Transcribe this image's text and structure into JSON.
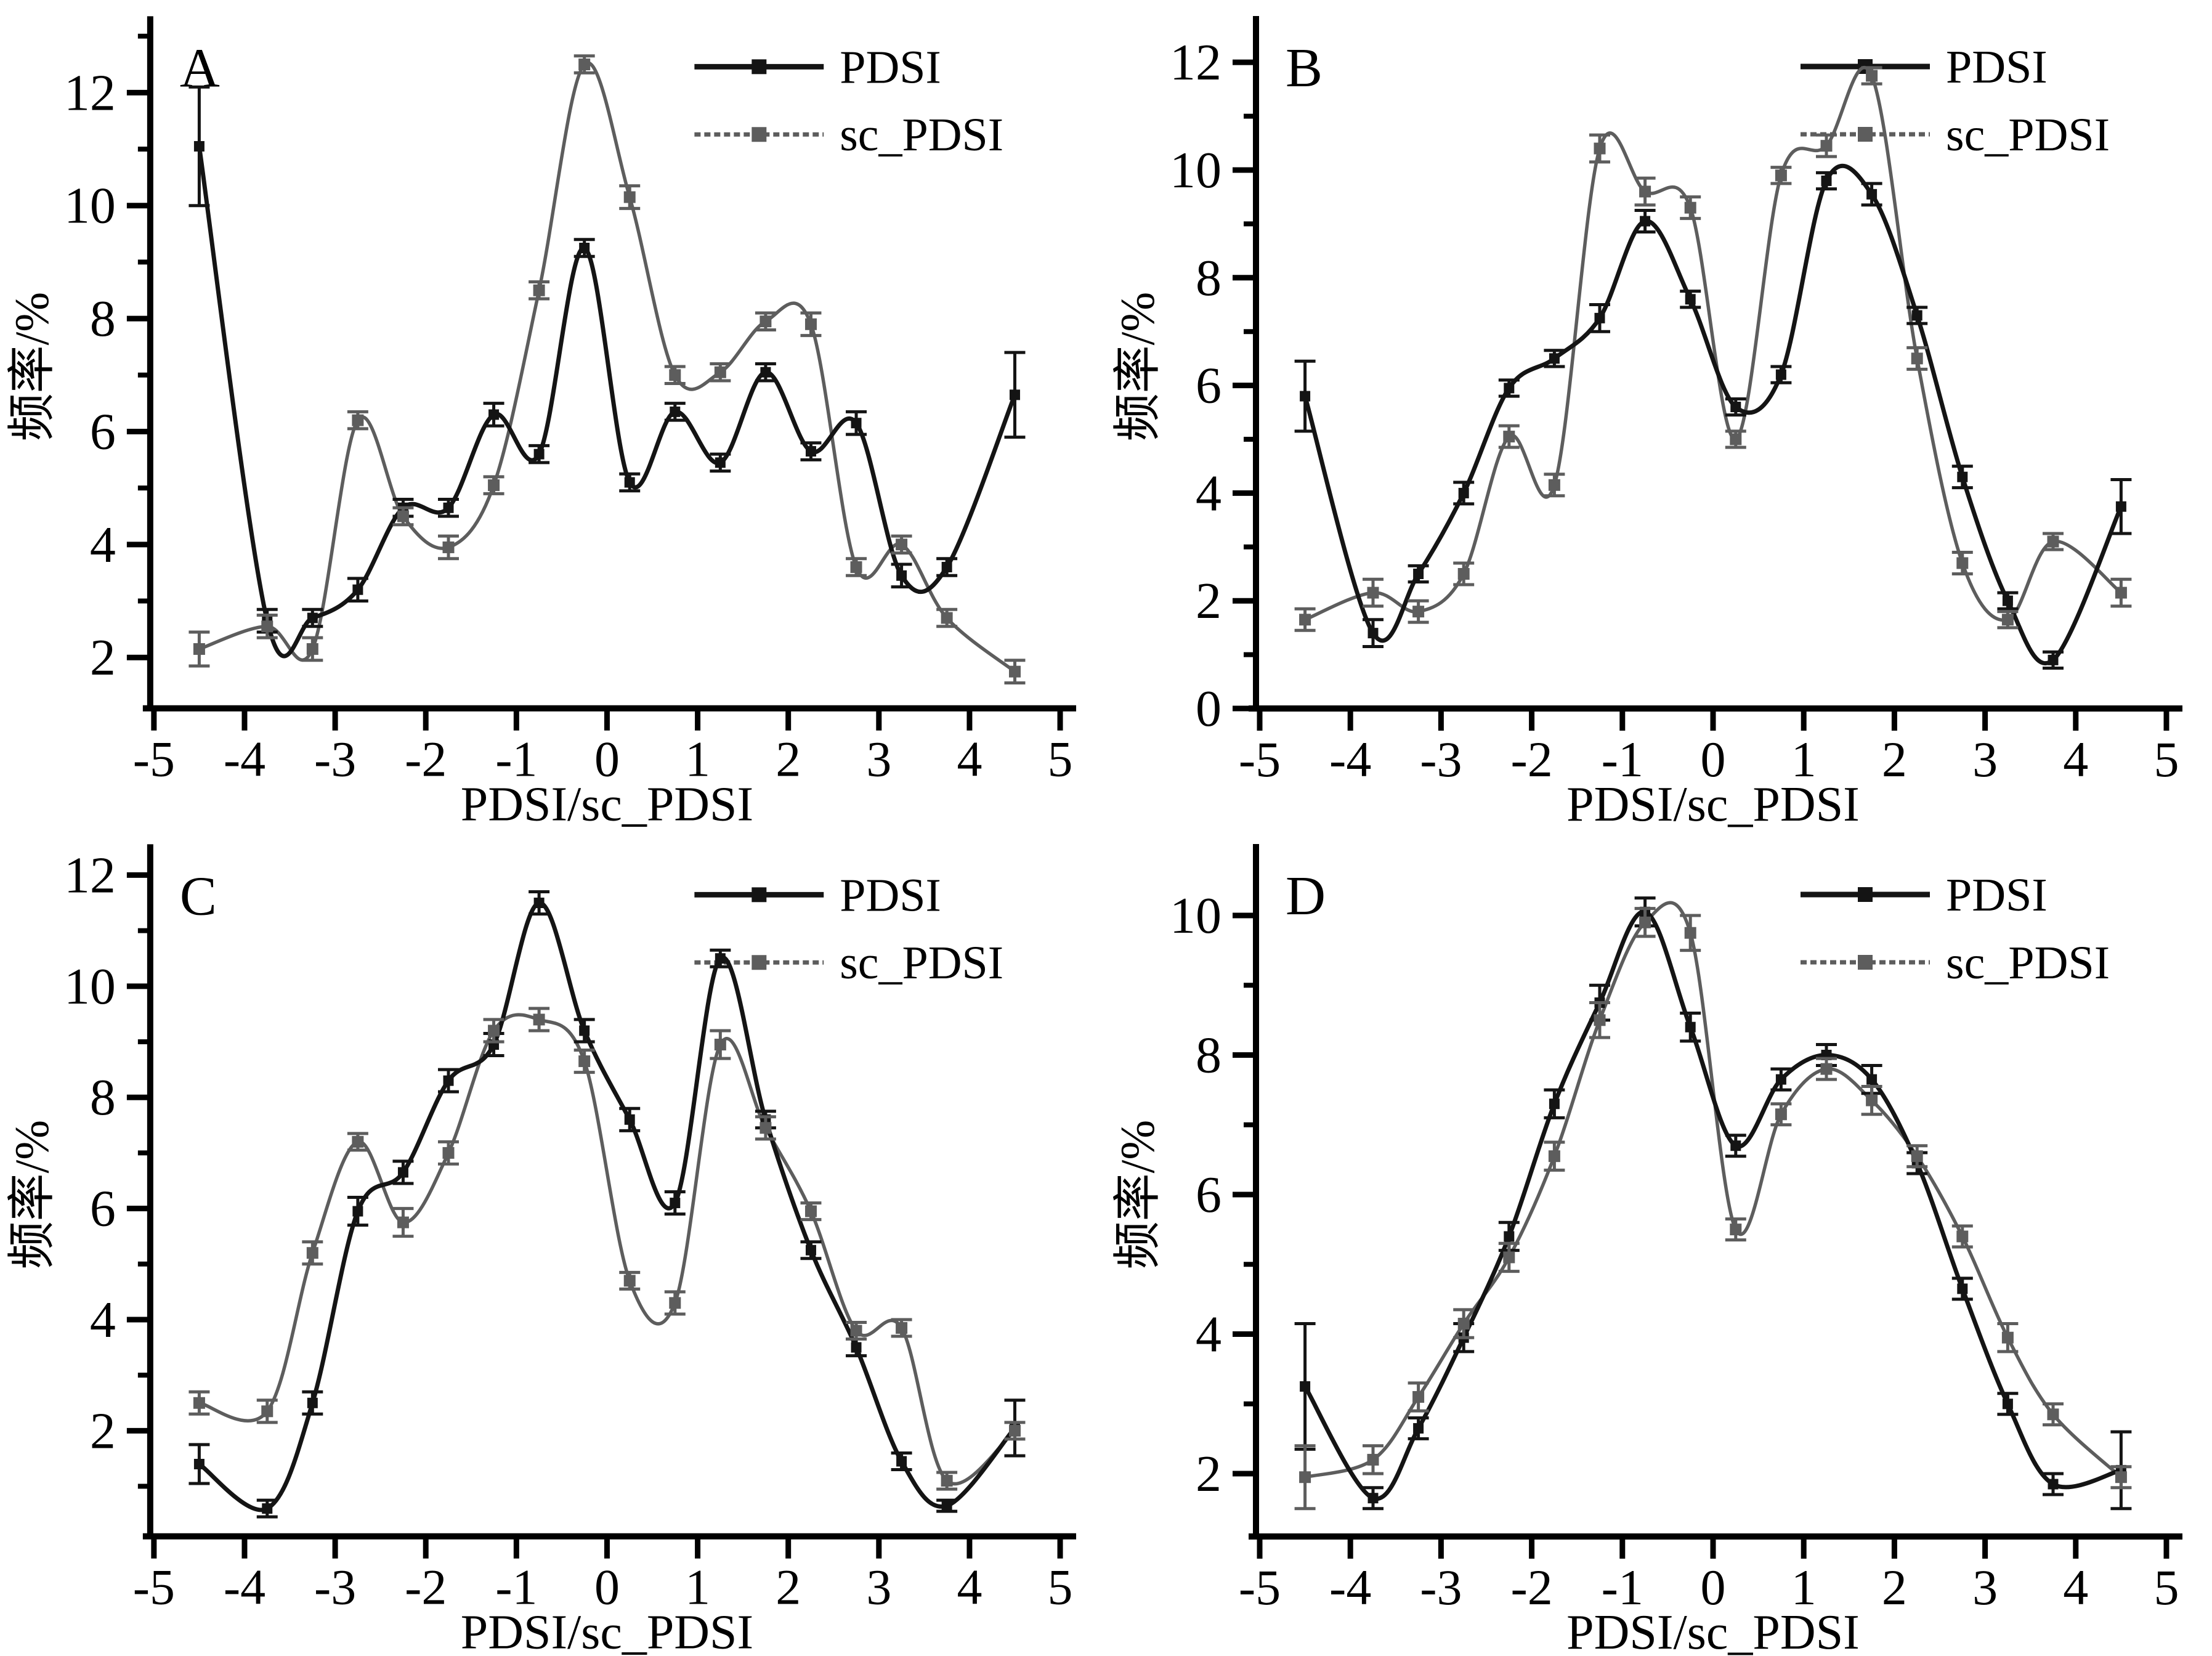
{
  "figure": {
    "xlabel": "PDSI/sc_PDSI",
    "ylabel": "频率/%",
    "legend": [
      "PDSI",
      "sc_PDSI"
    ],
    "colors": {
      "pdsi": "#141414",
      "sc_pdsi": "#5d5d5d",
      "axis": "#000000",
      "background": "#ffffff"
    },
    "x_ticks": [
      -5,
      -4,
      -3,
      -2,
      -1,
      0,
      1,
      2,
      3,
      4,
      5
    ]
  },
  "chart_data": [
    {
      "panel": "A",
      "type": "line",
      "xlabel": "PDSI/sc_PDSI",
      "ylabel": "频率/%",
      "xlim": [
        -5,
        5
      ],
      "ylim": [
        1.1,
        13.2
      ],
      "yticks": [
        2,
        4,
        6,
        8,
        10,
        12
      ],
      "xticks": [
        -5,
        -4,
        -3,
        -2,
        -1,
        0,
        1,
        2,
        3,
        4,
        5
      ],
      "grid": false,
      "legend_position": "top-right",
      "x": [
        -4.5,
        -3.75,
        -3.25,
        -2.75,
        -2.25,
        -1.75,
        -1.25,
        -0.75,
        -0.25,
        0.25,
        0.75,
        1.25,
        1.75,
        2.25,
        2.75,
        3.25,
        3.75,
        4.5
      ],
      "series": [
        {
          "name": "PDSI",
          "values": [
            11.05,
            2.65,
            2.7,
            3.2,
            4.65,
            4.65,
            6.3,
            5.6,
            9.25,
            5.1,
            6.35,
            5.45,
            7.05,
            5.65,
            6.15,
            3.45,
            3.6,
            6.65
          ],
          "err": [
            1.05,
            0.2,
            0.15,
            0.2,
            0.15,
            0.15,
            0.2,
            0.15,
            0.15,
            0.15,
            0.15,
            0.15,
            0.15,
            0.15,
            0.2,
            0.2,
            0.15,
            0.75
          ]
        },
        {
          "name": "sc_PDSI",
          "values": [
            2.15,
            2.55,
            2.15,
            6.2,
            4.5,
            3.95,
            5.05,
            8.5,
            12.5,
            10.15,
            7.0,
            7.05,
            7.95,
            7.9,
            3.6,
            4.0,
            2.7,
            1.75
          ],
          "err": [
            0.3,
            0.2,
            0.2,
            0.15,
            0.15,
            0.2,
            0.15,
            0.15,
            0.15,
            0.2,
            0.15,
            0.15,
            0.15,
            0.2,
            0.15,
            0.15,
            0.15,
            0.2
          ]
        }
      ]
    },
    {
      "panel": "B",
      "type": "line",
      "xlabel": "PDSI/sc_PDSI",
      "ylabel": "频率/%",
      "xlim": [
        -5,
        5
      ],
      "ylim": [
        0,
        12.7
      ],
      "yticks": [
        0,
        2,
        4,
        6,
        8,
        10,
        12
      ],
      "xticks": [
        -5,
        -4,
        -3,
        -2,
        -1,
        0,
        1,
        2,
        3,
        4,
        5
      ],
      "grid": false,
      "legend_position": "top-right",
      "x": [
        -4.5,
        -3.75,
        -3.25,
        -2.75,
        -2.25,
        -1.75,
        -1.25,
        -0.75,
        -0.25,
        0.25,
        0.75,
        1.25,
        1.75,
        2.25,
        2.75,
        3.25,
        3.75,
        4.5
      ],
      "series": [
        {
          "name": "PDSI",
          "values": [
            5.8,
            1.4,
            2.5,
            4.0,
            5.95,
            6.5,
            7.25,
            9.05,
            7.6,
            5.6,
            6.2,
            9.8,
            9.55,
            7.3,
            4.3,
            2.0,
            0.9,
            3.75
          ],
          "err": [
            0.65,
            0.25,
            0.15,
            0.2,
            0.15,
            0.15,
            0.25,
            0.2,
            0.15,
            0.15,
            0.15,
            0.15,
            0.2,
            0.15,
            0.2,
            0.15,
            0.15,
            0.5
          ]
        },
        {
          "name": "sc_PDSI",
          "values": [
            1.65,
            2.15,
            1.8,
            2.5,
            5.05,
            4.15,
            10.4,
            9.6,
            9.3,
            5.0,
            9.9,
            10.45,
            11.75,
            6.5,
            2.7,
            1.65,
            3.1,
            2.15
          ],
          "err": [
            0.2,
            0.25,
            0.2,
            0.2,
            0.2,
            0.2,
            0.25,
            0.25,
            0.2,
            0.15,
            0.15,
            0.2,
            0.15,
            0.2,
            0.2,
            0.15,
            0.15,
            0.25
          ]
        }
      ]
    },
    {
      "panel": "C",
      "type": "line",
      "xlabel": "PDSI/sc_PDSI",
      "ylabel": "频率/%",
      "xlim": [
        -5,
        5
      ],
      "ylim": [
        0.1,
        12.4
      ],
      "yticks": [
        2,
        4,
        6,
        8,
        10,
        12
      ],
      "xticks": [
        -5,
        -4,
        -3,
        -2,
        -1,
        0,
        1,
        2,
        3,
        4,
        5
      ],
      "grid": false,
      "legend_position": "top-right",
      "x": [
        -4.5,
        -3.75,
        -3.25,
        -2.75,
        -2.25,
        -1.75,
        -1.25,
        -0.75,
        -0.25,
        0.25,
        0.75,
        1.25,
        1.75,
        2.25,
        2.75,
        3.25,
        3.75,
        4.5
      ],
      "series": [
        {
          "name": "PDSI",
          "values": [
            1.4,
            0.6,
            2.5,
            5.95,
            6.65,
            8.3,
            8.95,
            11.5,
            9.2,
            7.6,
            6.1,
            10.5,
            7.6,
            5.25,
            3.5,
            1.45,
            0.65,
            2.05
          ],
          "err": [
            0.35,
            0.15,
            0.2,
            0.25,
            0.2,
            0.2,
            0.2,
            0.2,
            0.2,
            0.2,
            0.2,
            0.15,
            0.15,
            0.15,
            0.15,
            0.15,
            0.1,
            0.5
          ]
        },
        {
          "name": "sc_PDSI",
          "values": [
            2.5,
            2.35,
            5.2,
            7.2,
            5.75,
            7.0,
            9.2,
            9.4,
            8.65,
            4.7,
            4.3,
            8.95,
            7.45,
            5.95,
            3.8,
            3.85,
            1.1,
            2.0
          ],
          "err": [
            0.2,
            0.2,
            0.2,
            0.15,
            0.25,
            0.2,
            0.2,
            0.2,
            0.2,
            0.15,
            0.2,
            0.25,
            0.2,
            0.15,
            0.15,
            0.15,
            0.15,
            0.15
          ]
        }
      ]
    },
    {
      "panel": "D",
      "type": "line",
      "xlabel": "PDSI/sc_PDSI",
      "ylabel": "频率/%",
      "xlim": [
        -5,
        5
      ],
      "ylim": [
        1.1,
        10.9
      ],
      "yticks": [
        2,
        4,
        6,
        8,
        10
      ],
      "xticks": [
        -5,
        -4,
        -3,
        -2,
        -1,
        0,
        1,
        2,
        3,
        4,
        5
      ],
      "grid": false,
      "legend_position": "top-right",
      "x": [
        -4.5,
        -3.75,
        -3.25,
        -2.75,
        -2.25,
        -1.75,
        -1.25,
        -0.75,
        -0.25,
        0.25,
        0.75,
        1.25,
        1.75,
        2.25,
        2.75,
        3.25,
        3.75,
        4.5
      ],
      "series": [
        {
          "name": "PDSI",
          "values": [
            3.25,
            1.65,
            2.65,
            3.95,
            5.4,
            7.3,
            8.75,
            10.05,
            8.4,
            6.7,
            7.65,
            8.0,
            7.65,
            6.45,
            4.65,
            3.0,
            1.85,
            2.05
          ],
          "err": [
            0.9,
            0.15,
            0.15,
            0.2,
            0.2,
            0.2,
            0.25,
            0.2,
            0.2,
            0.15,
            0.15,
            0.15,
            0.2,
            0.15,
            0.15,
            0.15,
            0.15,
            0.55
          ]
        },
        {
          "name": "sc_PDSI",
          "values": [
            1.95,
            2.2,
            3.1,
            4.15,
            5.1,
            6.55,
            8.5,
            9.9,
            9.75,
            5.5,
            7.15,
            7.8,
            7.35,
            6.55,
            5.4,
            3.95,
            2.85,
            1.95
          ],
          "err": [
            0.45,
            0.2,
            0.2,
            0.2,
            0.2,
            0.2,
            0.25,
            0.2,
            0.25,
            0.15,
            0.15,
            0.15,
            0.2,
            0.15,
            0.15,
            0.2,
            0.15,
            0.15
          ]
        }
      ]
    }
  ]
}
